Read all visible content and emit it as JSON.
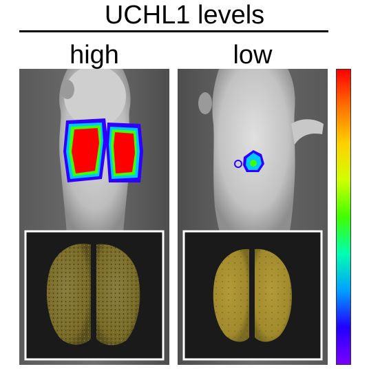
{
  "title": "UCHL1 levels",
  "panels": [
    {
      "label": "high"
    },
    {
      "label": "low"
    }
  ],
  "colors": {
    "signal_high": "#ff0000",
    "signal_mid": "#00c8ff",
    "signal_low": "#3000ff",
    "lung_tissue": "#a8902c",
    "inset_border": "#ffffff"
  },
  "color_scale": {
    "gradient": [
      "#7a00ff",
      "#2000ff",
      "#00a0ff",
      "#00ffb0",
      "#40ff00",
      "#d0ff00",
      "#ffd000",
      "#ff7000",
      "#ff0000"
    ],
    "orientation": "vertical, high at top"
  }
}
